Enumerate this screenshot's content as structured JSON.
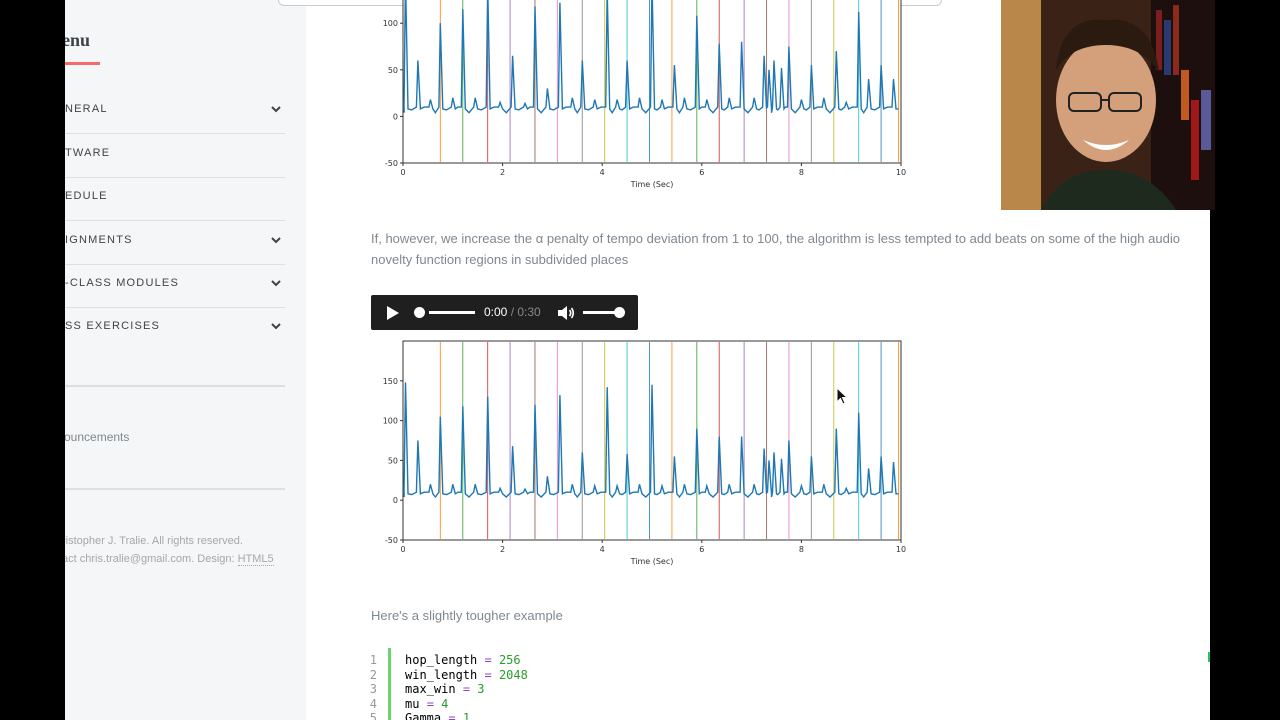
{
  "sidebar": {
    "menu_title": "enu",
    "items": [
      {
        "label": "NERAL",
        "has_chevron": true
      },
      {
        "label": "TWARE",
        "has_chevron": false
      },
      {
        "label": "EDULE",
        "has_chevron": false
      },
      {
        "label": "IGNMENTS",
        "has_chevron": true
      },
      {
        "label": "-CLASS MODULES",
        "has_chevron": true
      },
      {
        "label": "SS EXERCISES",
        "has_chevron": true
      }
    ],
    "announcements_link": "ouncements",
    "footer_line1": "ristopher J. Tralie. All rights reserved.",
    "footer_line2_prefix": "act chris.tralie@gmail.com. Design: ",
    "footer_design_link": "HTML5"
  },
  "main": {
    "paragraph1": "If, however, we increase the α penalty of tempo deviation from 1 to 100, the algorithm is less tempted to add beats on some of the high audio novelty function regions in subdivided places",
    "audio": {
      "current": "0:00",
      "separator": " / ",
      "duration": "0:30",
      "progress": 0.0,
      "volume": 1.0
    },
    "paragraph2": "Here's a slightly tougher example",
    "code": [
      {
        "ln": "1",
        "var": "hop_length",
        "val": "256"
      },
      {
        "ln": "2",
        "var": "win_length",
        "val": "2048"
      },
      {
        "ln": "3",
        "var": "max_win",
        "val": "3"
      },
      {
        "ln": "4",
        "var": "mu",
        "val": "4"
      },
      {
        "ln": "5",
        "var": "Gamma",
        "val": "1"
      }
    ]
  },
  "colors": {
    "accent": "#f56a6a",
    "sidebar_bg": "#f5f6f7",
    "signal": "#1f77b4",
    "code_bar": "#6ad36a"
  },
  "chart_data": [
    {
      "type": "line",
      "xlabel": "Time (Sec)",
      "ylabel": "",
      "title": "",
      "xlim": [
        0,
        10
      ],
      "ylim": [
        -50,
        200
      ],
      "xticks": [
        "0",
        "2",
        "4",
        "6",
        "8",
        "10"
      ],
      "yticks": [
        "-50",
        "0",
        "50",
        "100"
      ],
      "grid": false,
      "series": [
        {
          "x": [
            0.05,
            0.3,
            0.55,
            0.75,
            1.0,
            1.2,
            1.45,
            1.7,
            1.95,
            2.2,
            2.45,
            2.65,
            2.9,
            3.15,
            3.4,
            3.6,
            3.85,
            4.1,
            4.3,
            4.5,
            4.75,
            5.0,
            5.2,
            5.45,
            5.65,
            5.9,
            6.1,
            6.35,
            6.55,
            6.8,
            7.05,
            7.25,
            7.35,
            7.45,
            7.6,
            7.75,
            8.0,
            8.2,
            8.45,
            8.7,
            8.9,
            9.15,
            9.35,
            9.6,
            9.85
          ],
          "y": [
            148,
            60,
            18,
            100,
            20,
            115,
            20,
            140,
            15,
            65,
            14,
            118,
            30,
            122,
            20,
            60,
            18,
            135,
            18,
            60,
            20,
            145,
            18,
            55,
            20,
            108,
            18,
            78,
            20,
            80,
            20,
            65,
            50,
            60,
            52,
            75,
            18,
            55,
            20,
            70,
            15,
            112,
            40,
            55,
            40
          ]
        }
      ],
      "vlines": [
        0.75,
        1.2,
        1.7,
        2.15,
        2.65,
        3.1,
        3.6,
        4.05,
        4.5,
        4.95,
        5.4,
        5.9,
        6.35,
        6.85,
        7.3,
        7.75,
        8.2,
        8.65,
        9.15,
        9.6,
        9.95
      ]
    },
    {
      "type": "line",
      "xlabel": "Time (Sec)",
      "ylabel": "",
      "title": "",
      "xlim": [
        0,
        10
      ],
      "ylim": [
        -50,
        200
      ],
      "xticks": [
        "0",
        "2",
        "4",
        "6",
        "8",
        "10"
      ],
      "yticks": [
        "-50",
        "0",
        "50",
        "100",
        "150"
      ],
      "grid": false,
      "series": [
        {
          "x": [
            0.05,
            0.3,
            0.55,
            0.75,
            1.0,
            1.2,
            1.45,
            1.7,
            1.95,
            2.2,
            2.45,
            2.65,
            2.9,
            3.15,
            3.4,
            3.6,
            3.85,
            4.1,
            4.3,
            4.5,
            4.75,
            5.0,
            5.2,
            5.45,
            5.65,
            5.9,
            6.1,
            6.35,
            6.55,
            6.8,
            7.05,
            7.25,
            7.35,
            7.45,
            7.6,
            7.75,
            8.0,
            8.2,
            8.45,
            8.7,
            8.9,
            9.15,
            9.35,
            9.6,
            9.85
          ],
          "y": [
            148,
            75,
            20,
            105,
            20,
            118,
            20,
            130,
            15,
            68,
            14,
            120,
            30,
            132,
            20,
            60,
            18,
            142,
            18,
            58,
            20,
            145,
            18,
            55,
            20,
            90,
            18,
            80,
            20,
            80,
            20,
            65,
            50,
            60,
            52,
            75,
            18,
            55,
            20,
            90,
            15,
            110,
            40,
            55,
            48
          ]
        }
      ],
      "vlines": [
        0.75,
        1.2,
        1.7,
        2.15,
        2.65,
        3.1,
        3.6,
        4.05,
        4.5,
        4.95,
        5.4,
        5.9,
        6.35,
        6.85,
        7.3,
        7.75,
        8.2,
        8.65,
        9.15,
        9.6,
        9.95
      ]
    }
  ]
}
